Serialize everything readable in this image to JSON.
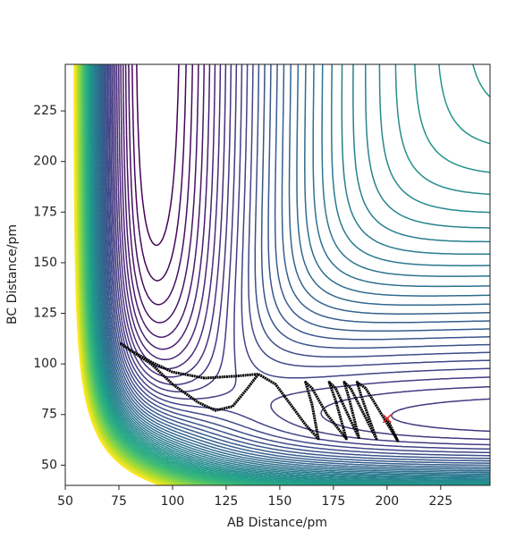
{
  "chart_data": {
    "type": "contour",
    "xlabel": "AB Distance/pm",
    "ylabel": "BC Distance/pm",
    "xlim": [
      50,
      248
    ],
    "ylim": [
      40,
      248
    ],
    "xticks": [
      50,
      75,
      100,
      125,
      150,
      175,
      200,
      225
    ],
    "yticks": [
      50,
      75,
      100,
      125,
      150,
      175,
      200,
      225
    ],
    "colormap": "viridis",
    "contour_levels": [
      -560,
      -544,
      -528,
      -512,
      -496,
      -480,
      -464,
      -448,
      -432,
      -416,
      -400,
      -384,
      -368,
      -352,
      -336,
      -320,
      -304,
      -288,
      -272,
      -256,
      -240,
      -224,
      -208,
      -192,
      -176,
      -160,
      -144,
      -128,
      -112,
      -96,
      -80,
      -64,
      -48,
      -32,
      -16,
      0,
      16,
      32,
      48,
      64,
      80,
      96,
      112,
      128,
      144,
      160,
      176,
      192,
      208,
      224,
      240,
      256,
      272,
      288,
      304,
      320,
      336,
      352,
      368,
      384,
      400
    ],
    "trajectory": {
      "color": "#000000",
      "x": [
        140,
        135,
        128,
        120,
        112,
        100,
        90,
        80,
        76,
        80,
        90,
        100,
        115,
        130,
        140,
        148,
        155,
        162,
        168,
        165,
        162,
        165,
        172,
        181,
        176,
        173,
        176,
        187,
        182,
        180,
        183,
        195,
        188,
        186,
        190,
        205,
        200
      ],
      "y": [
        95,
        88,
        79,
        77,
        81,
        90,
        100,
        107,
        110,
        107,
        101,
        96,
        93,
        94,
        95,
        90,
        80,
        70,
        63,
        80,
        91,
        88,
        75,
        63,
        82,
        91,
        88,
        63,
        84,
        91,
        88,
        63,
        84,
        91,
        88,
        62,
        73
      ]
    },
    "marker": {
      "x": 200,
      "y": 73,
      "color": "#e8262a"
    }
  }
}
